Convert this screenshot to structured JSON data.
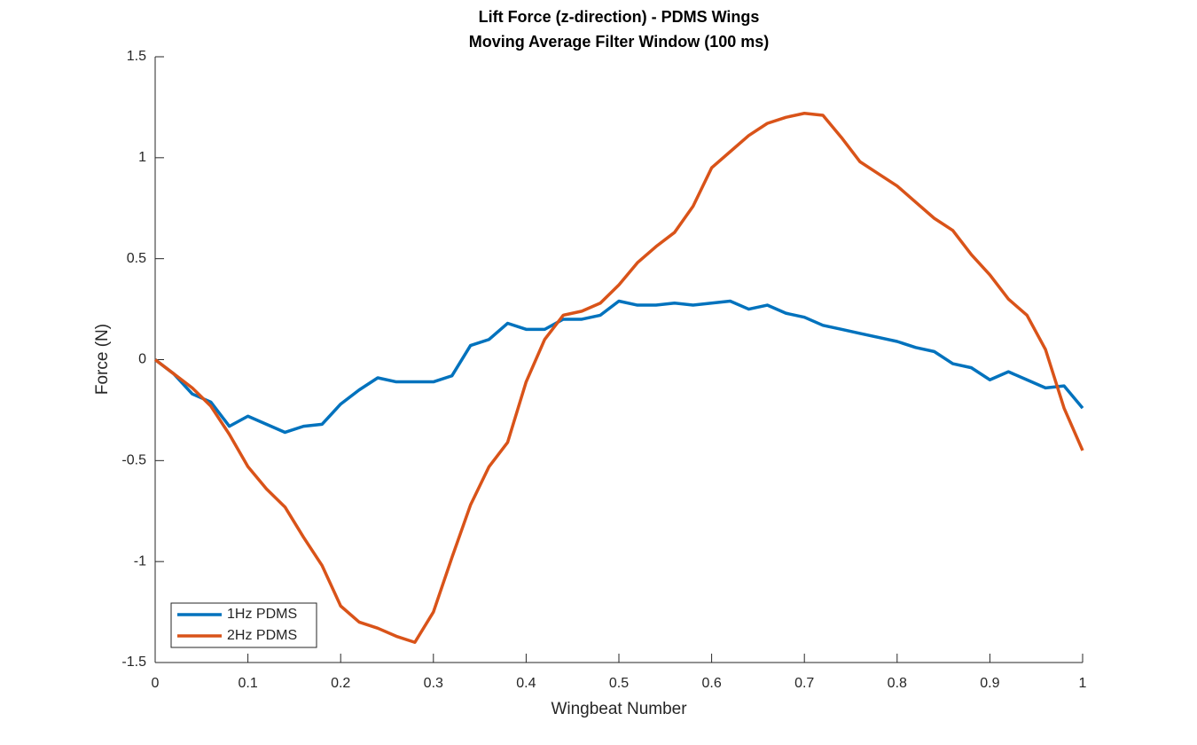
{
  "chart_data": {
    "type": "line",
    "title": "Lift Force (z-direction) - PDMS Wings",
    "subtitle": "Moving Average Filter Window (100 ms)",
    "x_label": "Wingbeat Number",
    "y_label": "Force (N)",
    "x": [
      0,
      0.02,
      0.04,
      0.06,
      0.08,
      0.1,
      0.12,
      0.14,
      0.16,
      0.18,
      0.2,
      0.22,
      0.24,
      0.26,
      0.28,
      0.3,
      0.32,
      0.34,
      0.36,
      0.38,
      0.4,
      0.42,
      0.44,
      0.46,
      0.48,
      0.5,
      0.52,
      0.54,
      0.56,
      0.58,
      0.6,
      0.62,
      0.64,
      0.66,
      0.68,
      0.7,
      0.72,
      0.74,
      0.76,
      0.78,
      0.8,
      0.82,
      0.84,
      0.86,
      0.88,
      0.9,
      0.92,
      0.94,
      0.96,
      0.98,
      1
    ],
    "series": [
      {
        "name": "1Hz PDMS",
        "color": "#0072bd",
        "values": [
          0,
          -0.07,
          -0.17,
          -0.21,
          -0.33,
          -0.28,
          -0.32,
          -0.36,
          -0.33,
          -0.32,
          -0.22,
          -0.15,
          -0.09,
          -0.11,
          -0.11,
          -0.11,
          -0.08,
          0.07,
          0.1,
          0.18,
          0.15,
          0.15,
          0.2,
          0.2,
          0.22,
          0.29,
          0.27,
          0.27,
          0.28,
          0.27,
          0.28,
          0.29,
          0.25,
          0.27,
          0.23,
          0.21,
          0.17,
          0.15,
          0.13,
          0.11,
          0.09,
          0.06,
          0.04,
          -0.02,
          -0.04,
          -0.1,
          -0.06,
          -0.1,
          -0.14,
          -0.13,
          -0.24
        ]
      },
      {
        "name": "2Hz PDMS",
        "color": "#d95319",
        "values": [
          0,
          -0.07,
          -0.14,
          -0.23,
          -0.37,
          -0.53,
          -0.64,
          -0.73,
          -0.88,
          -1.02,
          -1.22,
          -1.3,
          -1.33,
          -1.37,
          -1.4,
          -1.25,
          -0.98,
          -0.72,
          -0.53,
          -0.41,
          -0.11,
          0.1,
          0.22,
          0.24,
          0.28,
          0.37,
          0.48,
          0.56,
          0.63,
          0.76,
          0.95,
          1.03,
          1.11,
          1.17,
          1.2,
          1.22,
          1.21,
          1.1,
          0.98,
          0.92,
          0.86,
          0.78,
          0.7,
          0.64,
          0.52,
          0.42,
          0.3,
          0.22,
          0.05,
          -0.24,
          -0.45
        ]
      }
    ],
    "xlim": [
      0,
      1
    ],
    "xticks": [
      0,
      0.1,
      0.2,
      0.3,
      0.4,
      0.5,
      0.6,
      0.7,
      0.8,
      0.9,
      1
    ],
    "ylim": [
      -1.5,
      1.5
    ],
    "yticks": [
      -1.5,
      -1,
      -0.5,
      0,
      0.5,
      1,
      1.5
    ],
    "grid": false,
    "legend_position": "lower left"
  }
}
